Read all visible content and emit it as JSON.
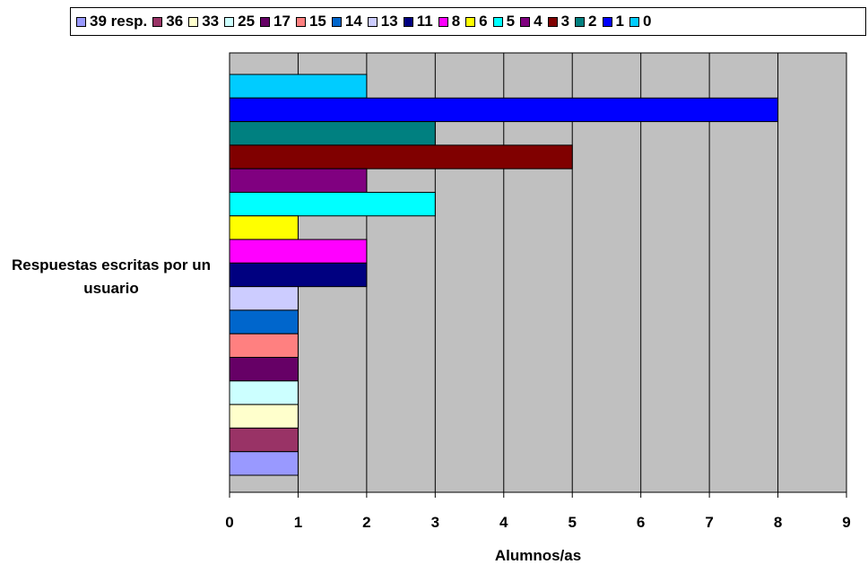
{
  "chart_data": {
    "type": "bar",
    "orientation": "horizontal",
    "ylabel": "Respuestas escritas por un usuario",
    "xlabel": "Alumnos/as",
    "xlim": [
      0,
      9
    ],
    "xticks": [
      "0",
      "1",
      "2",
      "3",
      "4",
      "5",
      "6",
      "7",
      "8",
      "9"
    ],
    "grid": true,
    "legend_position": "top",
    "plot_background": "#C0C0C0",
    "series": [
      {
        "name": "39 resp.",
        "value": 1,
        "color": "#9999FF"
      },
      {
        "name": "36",
        "value": 1,
        "color": "#993366"
      },
      {
        "name": "33",
        "value": 1,
        "color": "#FFFFCC"
      },
      {
        "name": "25",
        "value": 1,
        "color": "#CCFFFF"
      },
      {
        "name": "17",
        "value": 1,
        "color": "#660066"
      },
      {
        "name": "15",
        "value": 1,
        "color": "#FF8080"
      },
      {
        "name": "14",
        "value": 1,
        "color": "#0066CC"
      },
      {
        "name": "13",
        "value": 1,
        "color": "#CCCCFF"
      },
      {
        "name": "11",
        "value": 2,
        "color": "#000080"
      },
      {
        "name": "8",
        "value": 2,
        "color": "#FF00FF"
      },
      {
        "name": "6",
        "value": 1,
        "color": "#FFFF00"
      },
      {
        "name": "5",
        "value": 3,
        "color": "#00FFFF"
      },
      {
        "name": "4",
        "value": 2,
        "color": "#800080"
      },
      {
        "name": "3",
        "value": 5,
        "color": "#800000"
      },
      {
        "name": "2",
        "value": 3,
        "color": "#008080"
      },
      {
        "name": "1",
        "value": 8,
        "color": "#0000FF"
      },
      {
        "name": "0",
        "value": 2,
        "color": "#00CCFF"
      }
    ]
  }
}
